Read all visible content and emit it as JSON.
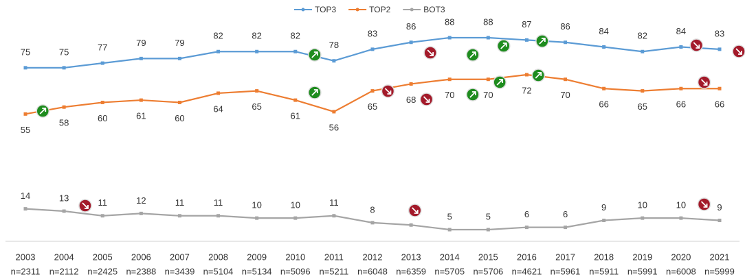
{
  "chart_data": {
    "type": "line",
    "categories": [
      "2003",
      "2004",
      "2005",
      "2006",
      "2007",
      "2008",
      "2009",
      "2010",
      "2011",
      "2012",
      "2013",
      "2014",
      "2015",
      "2016",
      "2017",
      "2018",
      "2019",
      "2020",
      "2021"
    ],
    "sample_sizes": [
      "n=2311",
      "n=2112",
      "n=2425",
      "n=2388",
      "n=3439",
      "n=5104",
      "n=5134",
      "n=5096",
      "n=5211",
      "n=6048",
      "n=6359",
      "n=5705",
      "n=5706",
      "n=4621",
      "n=5961",
      "n=5911",
      "n=5991",
      "n=6008",
      "n=5999"
    ],
    "series": [
      {
        "name": "TOP3",
        "color": "#5b9bd5",
        "values": [
          75,
          75,
          77,
          79,
          79,
          82,
          82,
          82,
          78,
          83,
          86,
          88,
          88,
          87,
          86,
          84,
          82,
          84,
          83
        ]
      },
      {
        "name": "TOP2",
        "color": "#ed7d31",
        "values": [
          55,
          58,
          60,
          61,
          60,
          64,
          65,
          61,
          56,
          65,
          68,
          70,
          70,
          72,
          70,
          66,
          65,
          66,
          66
        ]
      },
      {
        "name": "BOT3",
        "color": "#a5a5a5",
        "values": [
          14,
          13,
          11,
          12,
          11,
          11,
          10,
          10,
          11,
          8,
          7,
          5,
          5,
          6,
          6,
          9,
          10,
          10,
          9
        ]
      }
    ],
    "legend": "top"
  }
}
